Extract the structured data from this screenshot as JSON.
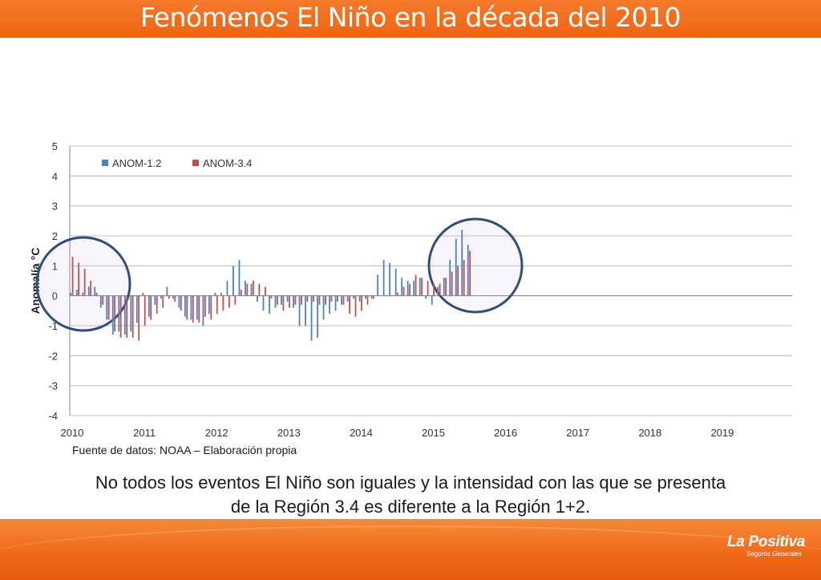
{
  "slide": {
    "title": "Fenómenos El Niño en la década del 2010",
    "source": "Fuente de datos: NOAA – Elaboración propia",
    "caption_line1": "No todos los eventos El Niño son iguales y la intensidad con las que se presenta",
    "caption_line2": "de la Región 3.4 es diferente a la Región 1+2.",
    "logo_name": "La Positiva",
    "logo_tagline": "Seguros Generales"
  },
  "colors": {
    "header": "#ef6a1e",
    "series_1": "#4f81bd",
    "series_2": "#c0504d",
    "highlight_circle": "#2f4e7a"
  },
  "chart_data": {
    "type": "bar",
    "ylabel": "Anomalía °C",
    "ylim": [
      -4,
      5
    ],
    "yticks": [
      -4,
      -3,
      -2,
      -1,
      0,
      1,
      2,
      3,
      4,
      5
    ],
    "xlim": [
      2010,
      2020
    ],
    "xticks": [
      2010,
      2011,
      2012,
      2013,
      2014,
      2015,
      2016,
      2017,
      2018,
      2019
    ],
    "grid": true,
    "legend_position": "top-left",
    "x_start": "2010-01",
    "x_step_months": 1,
    "series": [
      {
        "name": "ANOM-1.2",
        "values": [
          0.1,
          0.2,
          0.1,
          0.3,
          0.3,
          -0.4,
          -0.8,
          -1.3,
          -1.2,
          -1.3,
          -1.2,
          -0.9,
          0.1,
          -0.7,
          -0.3,
          -0.1,
          0.3,
          -0.1,
          -0.4,
          -0.7,
          -0.8,
          -0.8,
          -1.0,
          -0.6,
          0.1,
          0.1,
          0.5,
          1.0,
          1.2,
          0.5,
          0.4,
          -0.2,
          -0.5,
          -0.6,
          -0.4,
          -0.3,
          -0.2,
          -0.4,
          -1.0,
          -1.0,
          -1.5,
          -1.4,
          -0.8,
          -0.6,
          -0.5,
          -0.3,
          -0.2,
          -0.1,
          -0.2,
          -0.1,
          -0.1,
          0.7,
          1.2,
          1.1,
          0.9,
          0.6,
          0.5,
          0.5,
          0.6,
          -0.1,
          -0.3,
          0.3,
          0.6,
          1.2,
          1.9,
          2.2,
          1.7
        ]
      },
      {
        "name": "ANOM-3.4",
        "values": [
          1.3,
          1.1,
          0.9,
          0.5,
          0.1,
          -0.3,
          -0.8,
          -1.2,
          -1.4,
          -1.4,
          -1.4,
          -1.5,
          -1.0,
          -0.8,
          -0.6,
          -0.4,
          -0.1,
          -0.2,
          -0.5,
          -0.8,
          -0.9,
          -0.9,
          -0.7,
          -0.8,
          -0.6,
          -0.5,
          -0.4,
          -0.3,
          0.2,
          0.4,
          0.5,
          0.4,
          0.3,
          -0.1,
          -0.3,
          -0.5,
          -0.4,
          -0.3,
          -0.3,
          -0.2,
          -0.2,
          -0.3,
          -0.3,
          -0.2,
          -0.2,
          -0.3,
          -0.6,
          -0.7,
          -0.5,
          -0.3,
          -0.1,
          0.0,
          0.0,
          0.0,
          0.1,
          0.3,
          0.4,
          0.7,
          0.6,
          0.5,
          0.4,
          0.4,
          0.6,
          0.8,
          1.0,
          1.2,
          1.5
        ]
      }
    ]
  }
}
